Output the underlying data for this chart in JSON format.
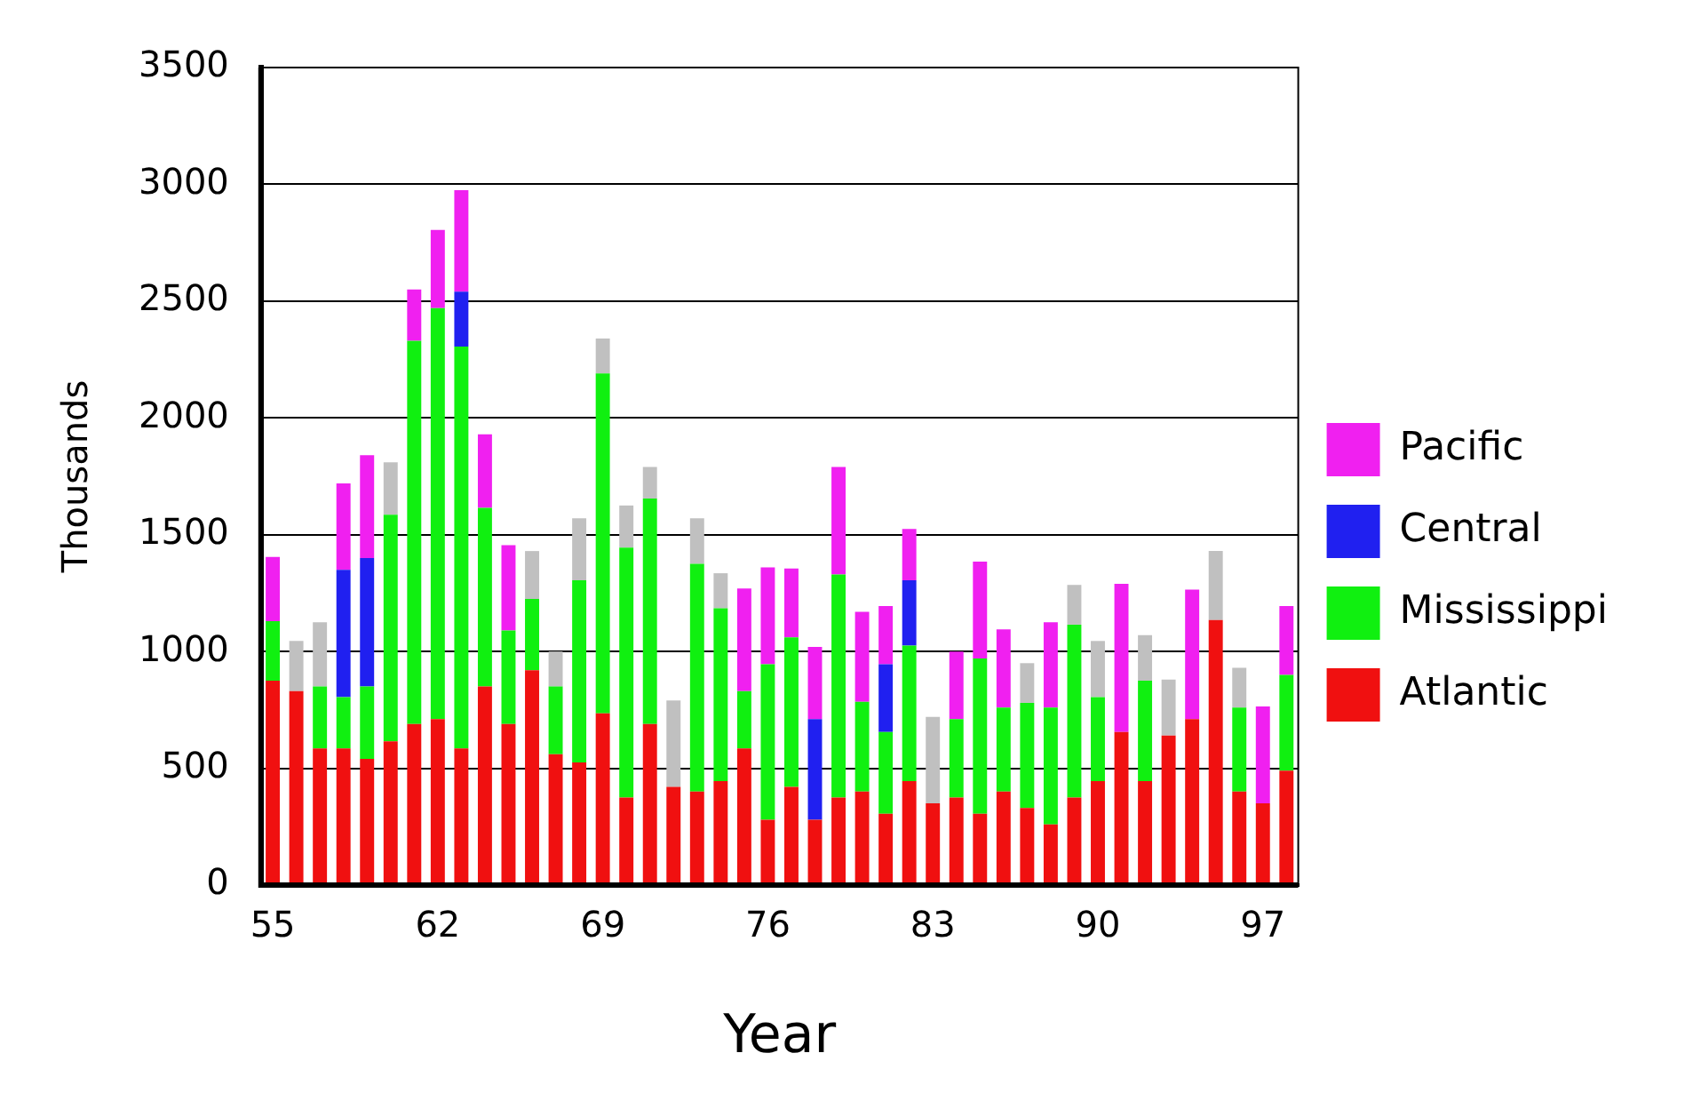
{
  "chart_data": {
    "type": "bar",
    "stacked": true,
    "xlabel": "Year",
    "ylabel": "Thousands",
    "categories": [
      "55",
      null,
      null,
      null,
      null,
      null,
      null,
      "62",
      null,
      null,
      null,
      null,
      null,
      null,
      "69",
      null,
      null,
      null,
      null,
      null,
      null,
      "76",
      null,
      null,
      null,
      null,
      null,
      null,
      "83",
      null,
      null,
      null,
      null,
      null,
      null,
      "90",
      null,
      null,
      null,
      null,
      null,
      null,
      "97",
      null
    ],
    "series": [
      {
        "name": "Atlantic",
        "color": "#f01010",
        "values": [
          875,
          830,
          585,
          585,
          540,
          615,
          690,
          710,
          585,
          850,
          690,
          920,
          560,
          525,
          735,
          375,
          690,
          420,
          400,
          445,
          585,
          280,
          420,
          280,
          375,
          400,
          305,
          445,
          350,
          375,
          305,
          400,
          330,
          260,
          375,
          445,
          655,
          445,
          640,
          710,
          1135,
          400,
          350,
          490
        ]
      },
      {
        "name": "Mississippi",
        "color": "#10f010",
        "values": [
          255,
          null,
          265,
          220,
          310,
          970,
          1640,
          1760,
          1720,
          765,
          400,
          305,
          290,
          780,
          1455,
          1070,
          965,
          null,
          975,
          740,
          245,
          665,
          640,
          null,
          955,
          385,
          350,
          580,
          null,
          335,
          665,
          360,
          450,
          500,
          740,
          360,
          null,
          430,
          null,
          null,
          null,
          360,
          null,
          410
        ]
      },
      {
        "name": "Central",
        "color": "#2020f0",
        "values": [
          null,
          null,
          null,
          545,
          550,
          null,
          null,
          null,
          235,
          null,
          null,
          null,
          null,
          null,
          null,
          null,
          null,
          null,
          null,
          null,
          null,
          null,
          null,
          430,
          null,
          null,
          290,
          280,
          null,
          null,
          null,
          null,
          null,
          null,
          null,
          null,
          null,
          null,
          null,
          null,
          null,
          null,
          null,
          null
        ]
      },
      {
        "name": "Pacific",
        "color": "#f020f0",
        "values": [
          275,
          null,
          null,
          370,
          440,
          null,
          220,
          335,
          435,
          315,
          365,
          null,
          null,
          null,
          null,
          null,
          null,
          null,
          null,
          null,
          440,
          415,
          295,
          310,
          460,
          385,
          250,
          220,
          null,
          290,
          415,
          335,
          null,
          365,
          null,
          null,
          635,
          null,
          null,
          555,
          null,
          null,
          415,
          295
        ]
      },
      {
        "color": "#c0c0c0",
        "values": [
          null,
          215,
          275,
          null,
          null,
          225,
          null,
          null,
          null,
          null,
          null,
          205,
          150,
          265,
          150,
          180,
          135,
          370,
          195,
          150,
          null,
          null,
          null,
          null,
          null,
          null,
          null,
          null,
          370,
          null,
          null,
          null,
          170,
          null,
          170,
          240,
          null,
          195,
          240,
          null,
          295,
          170,
          null,
          null
        ]
      }
    ],
    "ylim": [
      0,
      3500
    ],
    "yticks": [
      0,
      500,
      1000,
      1500,
      2000,
      2500,
      3000,
      3500
    ],
    "grid": "y",
    "legend": "right"
  }
}
